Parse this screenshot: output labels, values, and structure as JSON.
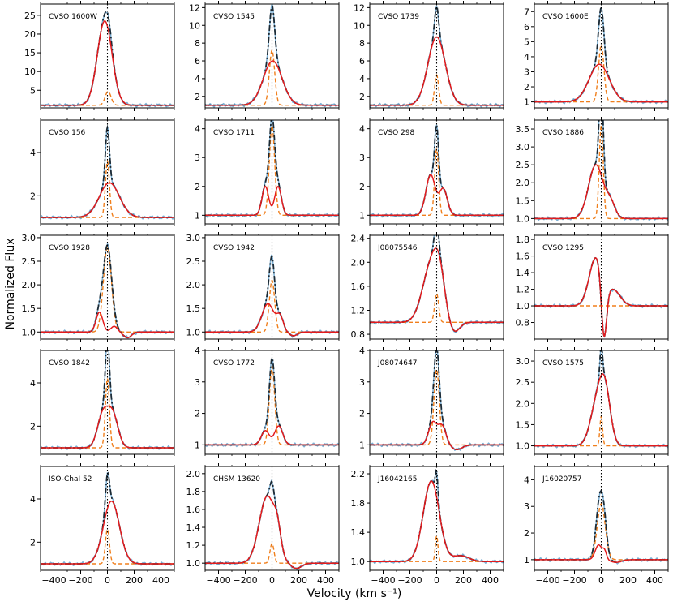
{
  "figure": {
    "ylabel": "Normalized Flux",
    "xlabel": "Velocity (km s⁻¹)"
  },
  "chart_data": {
    "type": "line",
    "xlim": [
      -500,
      500
    ],
    "x_ticks": [
      -400,
      -200,
      0,
      200,
      400
    ],
    "x_tick_labels": [
      "−400",
      "−200",
      "0",
      "200",
      "400"
    ],
    "vertical_reference_line_at": 0,
    "colors": {
      "observed": "#7bafd4",
      "total_fit": "#1b2a35",
      "broad_component": "#e41a1c",
      "narrow_component": "#f07f1c",
      "reference": "#000000"
    },
    "grid": false,
    "legend": "none",
    "panels": [
      {
        "name": "CVSO 1600W",
        "ylim": [
          0.3,
          28
        ],
        "yticks": [
          5,
          10,
          15,
          20,
          25
        ],
        "fmt": 0,
        "broad": [
          {
            "a": 22.5,
            "c": -20,
            "s": 55
          }
        ],
        "narrow": [
          {
            "a": 3.7,
            "c": 5,
            "s": 22
          }
        ],
        "base": 1.0
      },
      {
        "name": "CVSO 1545",
        "ylim": [
          0.7,
          12.4
        ],
        "yticks": [
          2,
          4,
          6,
          8,
          10,
          12
        ],
        "fmt": 0,
        "broad": [
          {
            "a": 5.0,
            "c": 5,
            "s": 70
          }
        ],
        "narrow": [
          {
            "a": 6.2,
            "c": 0,
            "s": 20
          }
        ],
        "base": 1.0
      },
      {
        "name": "CVSO 1739",
        "ylim": [
          0.7,
          12.4
        ],
        "yticks": [
          2,
          4,
          6,
          8,
          10,
          12
        ],
        "fmt": 0,
        "broad": [
          {
            "a": 7.7,
            "c": 0,
            "s": 65
          }
        ],
        "narrow": [
          {
            "a": 3.4,
            "c": 0,
            "s": 15
          }
        ],
        "base": 1.0
      },
      {
        "name": "CVSO 1600E",
        "ylim": [
          0.6,
          7.5
        ],
        "yticks": [
          1,
          2,
          3,
          4,
          5,
          6,
          7
        ],
        "fmt": 0,
        "broad": [
          {
            "a": 2.5,
            "c": -15,
            "s": 75
          }
        ],
        "narrow": [
          {
            "a": 3.8,
            "c": 0,
            "s": 20
          }
        ],
        "base": 1.0
      },
      {
        "name": "CVSO 156",
        "ylim": [
          0.7,
          5.5
        ],
        "yticks": [
          2,
          4
        ],
        "fmt": 0,
        "broad": [
          {
            "a": 1.6,
            "c": 15,
            "s": 75
          }
        ],
        "narrow": [
          {
            "a": 2.6,
            "c": 0,
            "s": 15
          }
        ],
        "base": 1.0
      },
      {
        "name": "CVSO 1711",
        "ylim": [
          0.7,
          4.3
        ],
        "yticks": [
          1,
          2,
          3,
          4
        ],
        "fmt": 0,
        "broad": [
          {
            "a": 1.0,
            "c": -50,
            "s": 25
          },
          {
            "a": 1.0,
            "c": 45,
            "s": 25
          }
        ],
        "narrow": [
          {
            "a": 3.1,
            "c": 0,
            "s": 20
          }
        ],
        "base": 1.0
      },
      {
        "name": "CVSO 298",
        "ylim": [
          0.7,
          4.3
        ],
        "yticks": [
          1,
          2,
          3,
          4
        ],
        "fmt": 0,
        "broad": [
          {
            "a": 1.4,
            "c": -45,
            "s": 35
          },
          {
            "a": 0.9,
            "c": 50,
            "s": 30
          }
        ],
        "narrow": [
          {
            "a": 2.3,
            "c": 0,
            "s": 15
          }
        ],
        "base": 1.0
      },
      {
        "name": "CVSO 1886",
        "ylim": [
          0.85,
          3.75
        ],
        "yticks": [
          1.0,
          1.5,
          2.0,
          2.5,
          3.0,
          3.5
        ],
        "fmt": 1,
        "broad": [
          {
            "a": 1.5,
            "c": -40,
            "s": 55
          },
          {
            "a": 0.4,
            "c": 70,
            "s": 35
          }
        ],
        "narrow": [
          {
            "a": 2.6,
            "c": 0,
            "s": 15
          }
        ],
        "base": 1.0
      },
      {
        "name": "CVSO 1928",
        "ylim": [
          0.85,
          3.05
        ],
        "yticks": [
          1.0,
          1.5,
          2.0,
          2.5,
          3.0
        ],
        "fmt": 1,
        "broad": [
          {
            "a": 0.42,
            "c": -60,
            "s": 25
          },
          {
            "a": 0.12,
            "c": 50,
            "s": 25
          },
          {
            "a": -0.12,
            "c": 150,
            "s": 30
          }
        ],
        "narrow": [
          {
            "a": 1.8,
            "c": 0,
            "s": 30
          }
        ],
        "base": 1.0
      },
      {
        "name": "CVSO 1942",
        "ylim": [
          0.85,
          3.05
        ],
        "yticks": [
          1.0,
          1.5,
          2.0,
          2.5,
          3.0
        ],
        "fmt": 1,
        "broad": [
          {
            "a": 0.6,
            "c": -30,
            "s": 45
          },
          {
            "a": 0.3,
            "c": 60,
            "s": 25
          },
          {
            "a": -0.08,
            "c": 160,
            "s": 30
          }
        ],
        "narrow": [
          {
            "a": 1.1,
            "c": 0,
            "s": 20
          }
        ],
        "base": 1.0
      },
      {
        "name": "J08075546",
        "ylim": [
          0.72,
          2.45
        ],
        "yticks": [
          0.8,
          1.2,
          1.6,
          2.0,
          2.4
        ],
        "fmt": 1,
        "broad": [
          {
            "a": 0.95,
            "c": -40,
            "s": 65
          },
          {
            "a": 0.5,
            "c": 20,
            "s": 40
          },
          {
            "a": -0.18,
            "c": 130,
            "s": 40
          }
        ],
        "narrow": [
          {
            "a": 0.48,
            "c": 0,
            "s": 15
          }
        ],
        "base": 1.0
      },
      {
        "name": "CVSO 1295",
        "ylim": [
          0.6,
          1.85
        ],
        "yticks": [
          0.8,
          1.0,
          1.2,
          1.4,
          1.6,
          1.8
        ],
        "fmt": 1,
        "broad": [
          {
            "a": 0.58,
            "c": -40,
            "s": 50
          },
          {
            "a": -0.7,
            "c": 20,
            "s": 20
          },
          {
            "a": 0.18,
            "c": 95,
            "s": 50
          }
        ],
        "narrow": [],
        "base": 1.0
      },
      {
        "name": "CVSO 1842",
        "ylim": [
          0.7,
          5.5
        ],
        "yticks": [
          2,
          4
        ],
        "fmt": 0,
        "broad": [
          {
            "a": 1.5,
            "c": -35,
            "s": 40
          },
          {
            "a": 1.5,
            "c": 40,
            "s": 40
          }
        ],
        "narrow": [
          {
            "a": 3.2,
            "c": 0,
            "s": 15
          }
        ],
        "base": 1.0
      },
      {
        "name": "CVSO 1772",
        "ylim": [
          0.7,
          4.0
        ],
        "yticks": [
          1,
          2,
          3,
          4
        ],
        "fmt": 0,
        "broad": [
          {
            "a": 0.45,
            "c": -50,
            "s": 30
          },
          {
            "a": 0.6,
            "c": 50,
            "s": 30
          }
        ],
        "narrow": [
          {
            "a": 2.5,
            "c": 0,
            "s": 20
          }
        ],
        "base": 1.0
      },
      {
        "name": "J08074647",
        "ylim": [
          0.7,
          4.0
        ],
        "yticks": [
          1,
          2,
          3,
          4
        ],
        "fmt": 0,
        "broad": [
          {
            "a": 0.7,
            "c": -30,
            "s": 30
          },
          {
            "a": 0.6,
            "c": 40,
            "s": 30
          },
          {
            "a": -0.15,
            "c": 150,
            "s": 40
          }
        ],
        "narrow": [
          {
            "a": 2.4,
            "c": 0,
            "s": 20
          }
        ],
        "base": 1.0
      },
      {
        "name": "CVSO 1575",
        "ylim": [
          0.8,
          3.25
        ],
        "yticks": [
          1.0,
          1.5,
          2.0,
          2.5,
          3.0
        ],
        "fmt": 1,
        "broad": [
          {
            "a": 1.0,
            "c": -30,
            "s": 50
          },
          {
            "a": 1.1,
            "c": 30,
            "s": 40
          }
        ],
        "narrow": [
          {
            "a": 0.7,
            "c": 0,
            "s": 10
          }
        ],
        "base": 1.0
      },
      {
        "name": "ISO-ChaI 52",
        "ylim": [
          0.7,
          5.5
        ],
        "yticks": [
          2,
          4
        ],
        "fmt": 0,
        "broad": [
          {
            "a": 2.9,
            "c": 30,
            "s": 60
          }
        ],
        "narrow": [
          {
            "a": 1.6,
            "c": 0,
            "s": 15
          }
        ],
        "base": 1.0
      },
      {
        "name": "CHSM 13620",
        "ylim": [
          0.92,
          2.08
        ],
        "yticks": [
          1.0,
          1.2,
          1.4,
          1.6,
          1.8,
          2.0
        ],
        "fmt": 1,
        "broad": [
          {
            "a": 0.75,
            "c": -35,
            "s": 60
          },
          {
            "a": 0.2,
            "c": 40,
            "s": 25
          },
          {
            "a": -0.06,
            "c": 180,
            "s": 40
          }
        ],
        "narrow": [
          {
            "a": 0.22,
            "c": 0,
            "s": 15
          }
        ],
        "base": 1.0
      },
      {
        "name": "J16042165",
        "ylim": [
          0.88,
          2.3
        ],
        "yticks": [
          1.0,
          1.4,
          1.8,
          2.2
        ],
        "fmt": 1,
        "broad": [
          {
            "a": 1.1,
            "c": -40,
            "s": 60
          },
          {
            "a": 0.08,
            "c": 180,
            "s": 60
          }
        ],
        "narrow": [
          {
            "a": 0.35,
            "c": 0,
            "s": 10
          }
        ],
        "base": 1.0
      },
      {
        "name": "J16020757",
        "ylim": [
          0.6,
          4.5
        ],
        "yticks": [
          1,
          2,
          3,
          4
        ],
        "fmt": 0,
        "broad": [
          {
            "a": 0.55,
            "c": -20,
            "s": 25
          },
          {
            "a": 0.3,
            "c": 25,
            "s": 15
          },
          {
            "a": -0.1,
            "c": 110,
            "s": 40
          }
        ],
        "narrow": [
          {
            "a": 2.1,
            "c": 0,
            "s": 30
          }
        ],
        "base": 1.0
      }
    ]
  }
}
